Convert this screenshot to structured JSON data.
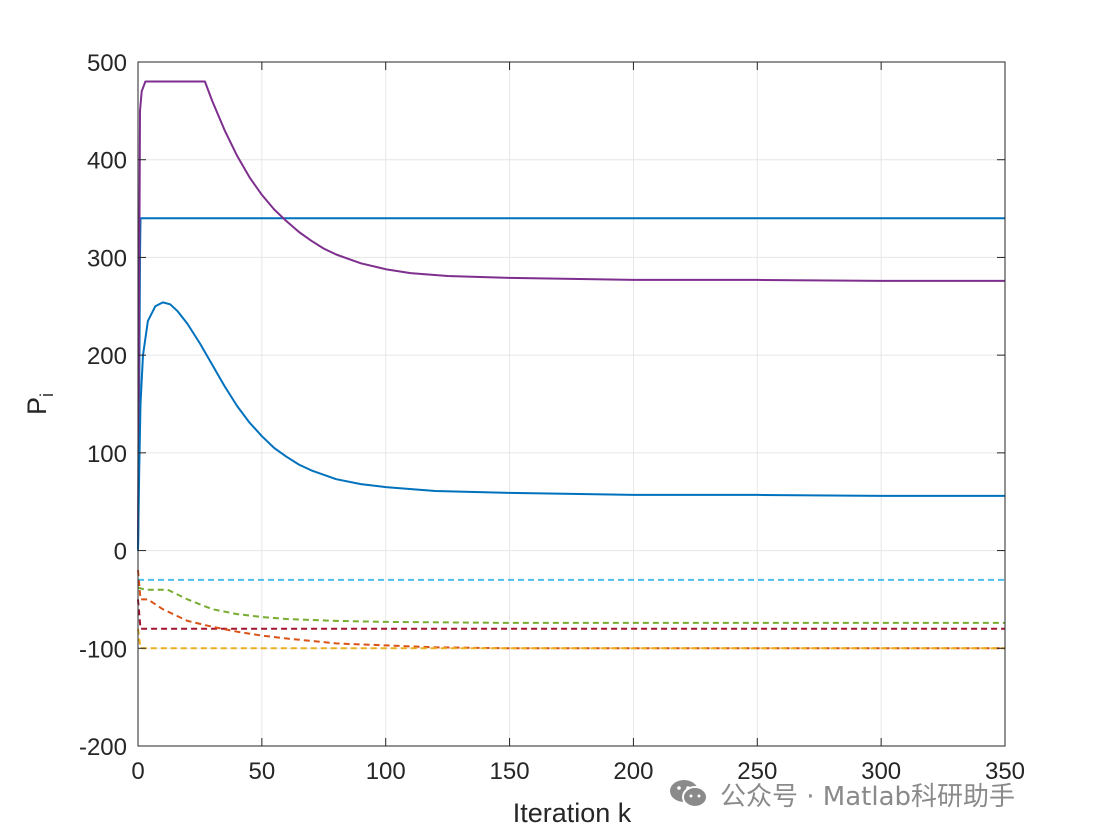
{
  "chart_data": {
    "type": "line",
    "title": "",
    "xlabel": "Iteration k",
    "ylabel": "P",
    "ylabel_subscript": "i",
    "xlim": [
      0,
      350
    ],
    "ylim": [
      -200,
      500
    ],
    "xticks": [
      0,
      50,
      100,
      150,
      200,
      250,
      300,
      350
    ],
    "yticks": [
      -200,
      -100,
      0,
      100,
      200,
      300,
      400,
      500
    ],
    "grid": true,
    "legend": "none",
    "series": [
      {
        "style": "solid",
        "color": "#0072BD",
        "points": [
          [
            0,
            0
          ],
          [
            0.5,
            150
          ],
          [
            0.8,
            300
          ],
          [
            1,
            340
          ],
          [
            350,
            340
          ]
        ]
      },
      {
        "style": "solid",
        "color": "#7E2F8E",
        "points": [
          [
            0,
            0
          ],
          [
            0.8,
            450
          ],
          [
            1.5,
            470
          ],
          [
            3,
            480
          ],
          [
            27,
            480
          ],
          [
            30,
            460
          ],
          [
            35,
            430
          ],
          [
            40,
            404
          ],
          [
            45,
            382
          ],
          [
            50,
            364
          ],
          [
            55,
            349
          ],
          [
            60,
            337
          ],
          [
            65,
            326
          ],
          [
            70,
            317
          ],
          [
            75,
            309
          ],
          [
            80,
            303
          ],
          [
            90,
            294
          ],
          [
            100,
            288
          ],
          [
            110,
            284
          ],
          [
            125,
            281
          ],
          [
            150,
            279
          ],
          [
            175,
            278
          ],
          [
            200,
            277
          ],
          [
            250,
            277
          ],
          [
            300,
            276
          ],
          [
            350,
            276
          ]
        ]
      },
      {
        "style": "solid",
        "color": "#0072BD",
        "points": [
          [
            0,
            0
          ],
          [
            0.5,
            80
          ],
          [
            1,
            150
          ],
          [
            2,
            200
          ],
          [
            4,
            235
          ],
          [
            7,
            250
          ],
          [
            10,
            254
          ],
          [
            13,
            252
          ],
          [
            16,
            245
          ],
          [
            20,
            232
          ],
          [
            25,
            212
          ],
          [
            30,
            190
          ],
          [
            35,
            168
          ],
          [
            40,
            148
          ],
          [
            45,
            131
          ],
          [
            50,
            117
          ],
          [
            55,
            105
          ],
          [
            60,
            96
          ],
          [
            65,
            88
          ],
          [
            70,
            82
          ],
          [
            80,
            73
          ],
          [
            90,
            68
          ],
          [
            100,
            65
          ],
          [
            120,
            61
          ],
          [
            150,
            59
          ],
          [
            200,
            57
          ],
          [
            250,
            57
          ],
          [
            300,
            56
          ],
          [
            350,
            56
          ]
        ]
      },
      {
        "style": "dashed",
        "color": "#4DBEEE",
        "points": [
          [
            0,
            -30
          ],
          [
            350,
            -30
          ]
        ]
      },
      {
        "style": "dashed",
        "color": "#77AC30",
        "points": [
          [
            0,
            -38
          ],
          [
            3,
            -40
          ],
          [
            12,
            -40
          ],
          [
            20,
            -50
          ],
          [
            30,
            -60
          ],
          [
            40,
            -65
          ],
          [
            50,
            -68
          ],
          [
            60,
            -70
          ],
          [
            80,
            -72
          ],
          [
            100,
            -73
          ],
          [
            150,
            -74
          ],
          [
            200,
            -74
          ],
          [
            350,
            -74
          ]
        ]
      },
      {
        "style": "dashed",
        "color": "#A2142F",
        "points": [
          [
            0,
            -50
          ],
          [
            1,
            -80
          ],
          [
            350,
            -80
          ]
        ]
      },
      {
        "style": "dashed",
        "color": "#D95319",
        "points": [
          [
            0,
            -20
          ],
          [
            1,
            -50
          ],
          [
            4,
            -50
          ],
          [
            10,
            -60
          ],
          [
            20,
            -72
          ],
          [
            30,
            -78
          ],
          [
            40,
            -83
          ],
          [
            50,
            -87
          ],
          [
            60,
            -90
          ],
          [
            80,
            -95
          ],
          [
            100,
            -97
          ],
          [
            120,
            -99
          ],
          [
            150,
            -100
          ],
          [
            350,
            -100
          ]
        ]
      },
      {
        "style": "dashed",
        "color": "#EDB120",
        "points": [
          [
            0,
            -80
          ],
          [
            1,
            -100
          ],
          [
            350,
            -100
          ]
        ]
      }
    ]
  },
  "watermark": {
    "text": "公众号 · Matlab科研助手",
    "icon": "wechat-icon"
  }
}
